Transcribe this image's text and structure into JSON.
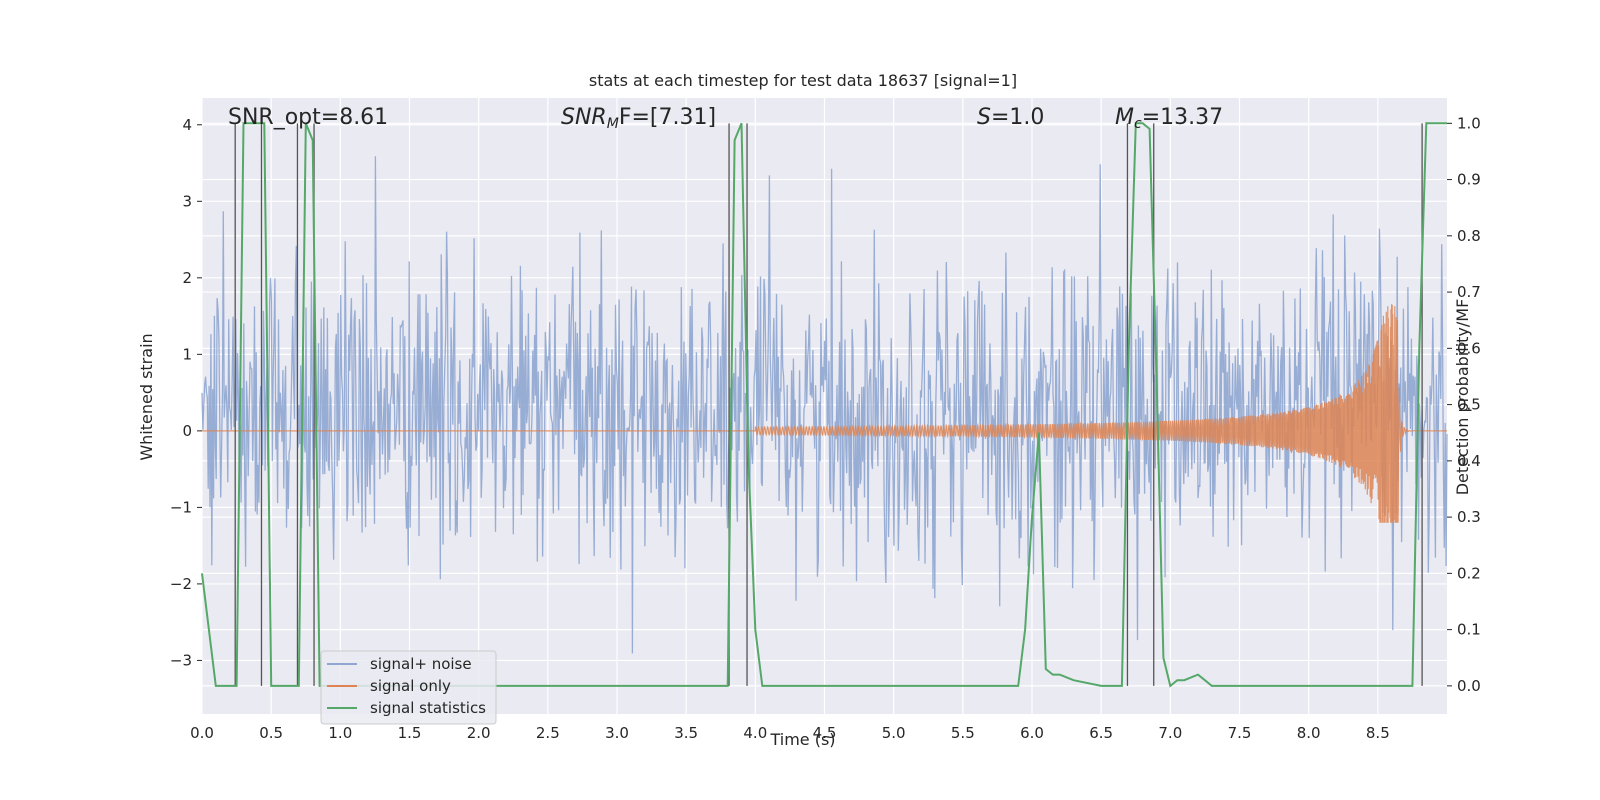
{
  "chart_data": {
    "type": "line",
    "title": "stats at each timestep for test data 18637 [signal=1]",
    "xlabel": "Time (s)",
    "ylabel": "Whitened strain",
    "y2label": "Detection probability/MF",
    "xlim": [
      0.0,
      9.0
    ],
    "ylim": [
      -3.7,
      4.35
    ],
    "y2lim": [
      -0.05,
      1.045
    ],
    "grid": true,
    "legend_position": "lower-left",
    "x_ticks": [
      "0.0",
      "0.5",
      "1.0",
      "1.5",
      "2.0",
      "2.5",
      "3.0",
      "3.5",
      "4.0",
      "4.5",
      "5.0",
      "5.5",
      "6.0",
      "6.5",
      "7.0",
      "7.5",
      "8.0",
      "8.5"
    ],
    "y_ticks": [
      "−3",
      "−2",
      "−1",
      "0",
      "1",
      "2",
      "3",
      "4"
    ],
    "y2_ticks": [
      "0.0",
      "0.1",
      "0.2",
      "0.3",
      "0.4",
      "0.5",
      "0.6",
      "0.7",
      "0.8",
      "0.9",
      "1.0"
    ],
    "annotations": {
      "snr_opt": "SNR_opt=8.61",
      "snr_mf_italic": "SNR",
      "snr_mf_sub": "M",
      "snr_mf_rest": "F=[7.31]",
      "s_italic": "S",
      "s_rest": "=1.0",
      "mc_italic": "M",
      "mc_sub": "c",
      "mc_rest": "=13.37"
    },
    "legend": [
      "signal+ noise",
      "signal only",
      "signal statistics"
    ],
    "colors": {
      "noise": "#8fa6d0",
      "signal": "#dd8452",
      "stats": "#55a868",
      "vlines": "#555555",
      "background": "#eaeaf2",
      "grid": "#ffffff"
    },
    "series": [
      {
        "name": "signal+ noise",
        "description_values": "random noise about 0, amplitude up to about ±4 strain",
        "t_range": [
          0.0,
          9.0
        ],
        "typical_band": [
          -1.2,
          1.7
        ],
        "max": 4.0,
        "min": -3.5
      },
      {
        "name": "signal only",
        "chirp": {
          "t_start": 4.0,
          "t_merger": 8.65,
          "peak_amplitude": 1.7,
          "peak_min": -1.2
        }
      },
      {
        "name": "signal statistics",
        "axis": "right",
        "x": [
          0.0,
          0.05,
          0.1,
          0.15,
          0.2,
          0.25,
          0.3,
          0.35,
          0.4,
          0.45,
          0.5,
          0.55,
          0.6,
          0.65,
          0.7,
          0.75,
          0.8,
          0.85,
          0.9,
          3.8,
          3.85,
          3.9,
          3.95,
          4.0,
          4.05,
          5.9,
          5.95,
          6.0,
          6.05,
          6.1,
          6.15,
          6.2,
          6.3,
          6.5,
          6.65,
          6.7,
          6.75,
          6.8,
          6.85,
          6.9,
          6.95,
          7.0,
          7.05,
          7.1,
          7.2,
          7.25,
          7.3,
          8.75,
          8.8,
          8.85,
          8.9,
          9.0
        ],
        "y": [
          0.2,
          0.1,
          0.0,
          0.0,
          0.0,
          0.0,
          1.0,
          1.0,
          1.0,
          1.0,
          0.0,
          0.0,
          0.0,
          0.0,
          0.0,
          1.0,
          0.97,
          0.0,
          0.0,
          0.0,
          0.97,
          1.0,
          0.4,
          0.1,
          0.0,
          0.0,
          0.1,
          0.3,
          0.45,
          0.03,
          0.02,
          0.02,
          0.01,
          0.0,
          0.0,
          0.6,
          1.0,
          1.0,
          0.99,
          0.55,
          0.05,
          0.0,
          0.01,
          0.01,
          0.02,
          0.01,
          0.0,
          0.0,
          0.6,
          1.0,
          1.0,
          1.0
        ]
      }
    ],
    "vertical_lines_x": [
      0.24,
      0.43,
      0.69,
      0.81,
      3.81,
      3.94,
      6.69,
      6.88,
      8.82
    ]
  }
}
